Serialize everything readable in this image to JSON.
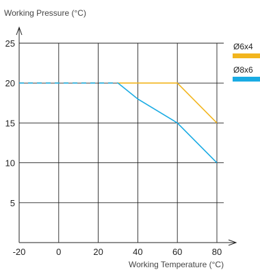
{
  "chart_data": {
    "type": "line",
    "xlabel": "Working Temperature (°C)",
    "ylabel": "Working Pressure (°C)",
    "x_ticks": [
      -20,
      0,
      20,
      40,
      60,
      80
    ],
    "y_ticks": [
      5,
      10,
      15,
      20,
      25
    ],
    "xlim": [
      -20,
      80
    ],
    "ylim": [
      0,
      25
    ],
    "grid": true,
    "legend_position": "right",
    "series": [
      {
        "name": "Ø6x4",
        "color": "#F2B51E",
        "x": [
          -20,
          60,
          80
        ],
        "y": [
          20,
          20,
          15
        ],
        "dashed_until_x": 30
      },
      {
        "name": "Ø8x6",
        "color": "#1AABE3",
        "x": [
          -20,
          30,
          40,
          60,
          80
        ],
        "y": [
          20,
          20,
          18,
          15,
          10
        ],
        "dashed_until_x": 30
      }
    ]
  }
}
